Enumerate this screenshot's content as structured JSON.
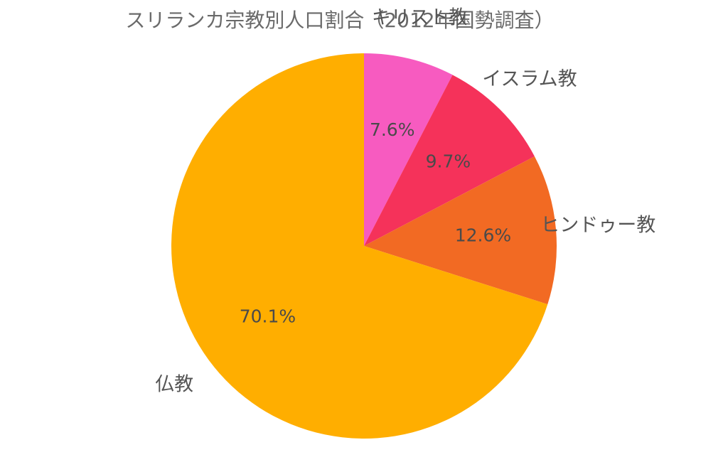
{
  "chart_data": {
    "type": "pie",
    "title": "スリランカ宗教別人口割合（2012年国勢調査）",
    "slices": [
      {
        "label": "キリスト教",
        "value": 7.6,
        "value_label": "7.6%",
        "color": "#f75bc0"
      },
      {
        "label": "イスラム教",
        "value": 9.7,
        "value_label": "9.7%",
        "color": "#f5325a"
      },
      {
        "label": "ヒンドゥー教",
        "value": 12.6,
        "value_label": "12.6%",
        "color": "#f26a23"
      },
      {
        "label": "仏教",
        "value": 70.1,
        "value_label": "70.1%",
        "color": "#ffae00"
      }
    ],
    "start": "top",
    "direction": "clockwise",
    "legend": "none"
  }
}
